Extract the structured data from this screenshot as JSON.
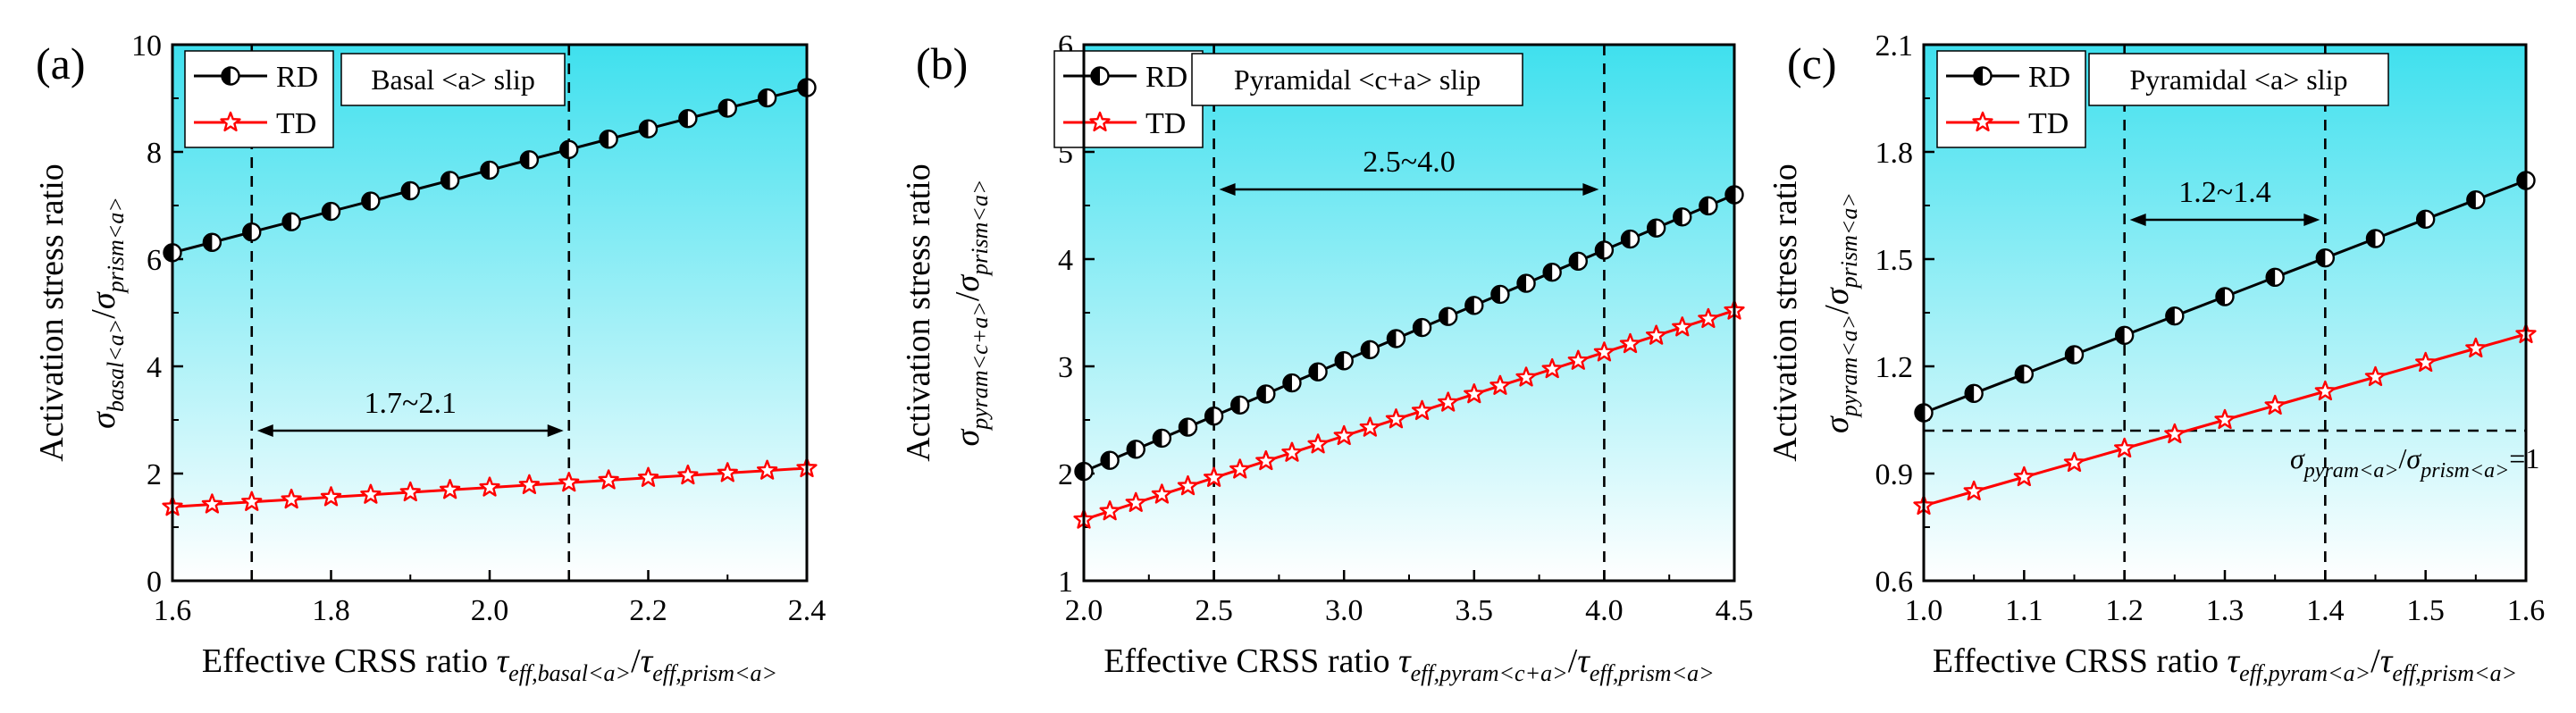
{
  "chart_data": [
    {
      "type": "line",
      "panel_label": "(a)",
      "ylabel": {
        "main": "Activation stress ratio",
        "sym": "σ",
        "sub1": "basal<a>",
        "slash": "/",
        "sym2": "σ",
        "sub2": "prism<a>"
      },
      "xlabel": {
        "main": "Effective CRSS ratio ",
        "sym": "τ",
        "sub1": "eff,basal<a>",
        "slash": "/",
        "sym2": "τ",
        "sub2": "eff,prism<a>"
      },
      "xlim": [
        1.6,
        2.4
      ],
      "ylim": [
        0,
        10
      ],
      "xticks": [
        1.6,
        1.8,
        2.0,
        2.2,
        2.4
      ],
      "xticklabels": [
        "1.6",
        "1.8",
        "2.0",
        "2.2",
        "2.4"
      ],
      "yticks": [
        0,
        2,
        4,
        6,
        8,
        10
      ],
      "yticklabels": [
        "0",
        "2",
        "4",
        "6",
        "8",
        "10"
      ],
      "legend": [
        "RD",
        "TD"
      ],
      "slip_label": "Basal <a> slip",
      "vlines": [
        1.7,
        2.1
      ],
      "range_label": "1.7~2.1",
      "range_y": 2.8,
      "series": [
        {
          "name": "RD",
          "x_start": 1.6,
          "x_end": 2.4,
          "n": 17,
          "y_start": 6.12,
          "y_end": 9.2
        },
        {
          "name": "TD",
          "x_start": 1.6,
          "x_end": 2.4,
          "n": 17,
          "y_start": 1.38,
          "y_end": 2.1
        }
      ]
    },
    {
      "type": "line",
      "panel_label": "(b)",
      "ylabel": {
        "main": "Activation stress ratio",
        "sym": "σ",
        "sub1": "pyram<c+a>",
        "slash": "/",
        "sym2": "σ",
        "sub2": "prism<a>"
      },
      "xlabel": {
        "main": "Effective CRSS ratio ",
        "sym": "τ",
        "sub1": "eff,pyram<c+a>",
        "slash": "/",
        "sym2": "τ",
        "sub2": "eff,prism<a>"
      },
      "xlim": [
        2.0,
        4.5
      ],
      "ylim": [
        1,
        6
      ],
      "xticks": [
        2.0,
        2.5,
        3.0,
        3.5,
        4.0,
        4.5
      ],
      "xticklabels": [
        "2.0",
        "2.5",
        "3.0",
        "3.5",
        "4.0",
        "4.5"
      ],
      "yticks": [
        1,
        2,
        3,
        4,
        5,
        6
      ],
      "yticklabels": [
        "1",
        "2",
        "3",
        "4",
        "5",
        "6"
      ],
      "legend": [
        "RD",
        "TD"
      ],
      "slip_label": "Pyramidal <c+a> slip",
      "vlines": [
        2.5,
        4.0
      ],
      "range_label": "2.5~4.0",
      "range_y": 4.65,
      "series": [
        {
          "name": "RD",
          "x_start": 2.0,
          "x_end": 4.5,
          "n": 26,
          "y_start": 2.02,
          "y_end": 4.6
        },
        {
          "name": "TD",
          "x_start": 2.0,
          "x_end": 4.5,
          "n": 26,
          "y_start": 1.57,
          "y_end": 3.52
        }
      ]
    },
    {
      "type": "line",
      "panel_label": "(c)",
      "ylabel": {
        "main": "Activation stress ratio",
        "sym": "σ",
        "sub1": "pyram<a>",
        "slash": "/",
        "sym2": "σ",
        "sub2": "prism<a>"
      },
      "xlabel": {
        "main": "Effective CRSS ratio ",
        "sym": "τ",
        "sub1": "eff,pyram<a>",
        "slash": "/",
        "sym2": "τ",
        "sub2": "eff,prism<a>"
      },
      "xlim": [
        1.0,
        1.6
      ],
      "ylim": [
        0.6,
        2.1
      ],
      "xticks": [
        1.0,
        1.1,
        1.2,
        1.3,
        1.4,
        1.5,
        1.6
      ],
      "xticklabels": [
        "1.0",
        "1.1",
        "1.2",
        "1.3",
        "1.4",
        "1.5",
        "1.6"
      ],
      "yticks": [
        0.6,
        0.9,
        1.2,
        1.5,
        1.8,
        2.1
      ],
      "yticklabels": [
        "0.6",
        "0.9",
        "1.2",
        "1.5",
        "1.8",
        "2.1"
      ],
      "legend": [
        "RD",
        "TD"
      ],
      "slip_label": "Pyramidal <a> slip",
      "vlines": [
        1.2,
        1.4
      ],
      "range_label": "1.2~1.4",
      "range_y": 1.61,
      "hline": 1.02,
      "hline_label": {
        "sym": "σ",
        "sub1": "pyram<a>",
        "slash": "/",
        "sym2": "σ",
        "sub2": "prism<a>",
        "tail": "=1"
      },
      "series": [
        {
          "name": "RD",
          "x_start": 1.0,
          "x_end": 1.6,
          "n": 13,
          "y_start": 1.07,
          "y_end": 1.72
        },
        {
          "name": "TD",
          "x_start": 1.0,
          "x_end": 1.6,
          "n": 13,
          "y_start": 0.81,
          "y_end": 1.29
        }
      ]
    }
  ],
  "colors": {
    "rd": "#000000",
    "td": "#ff0000",
    "grad_top": "#3fe0ee",
    "grad_bottom": "#ffffff"
  },
  "marker_icons": {
    "rd": "half-filled-circle-icon",
    "td": "star-icon"
  }
}
